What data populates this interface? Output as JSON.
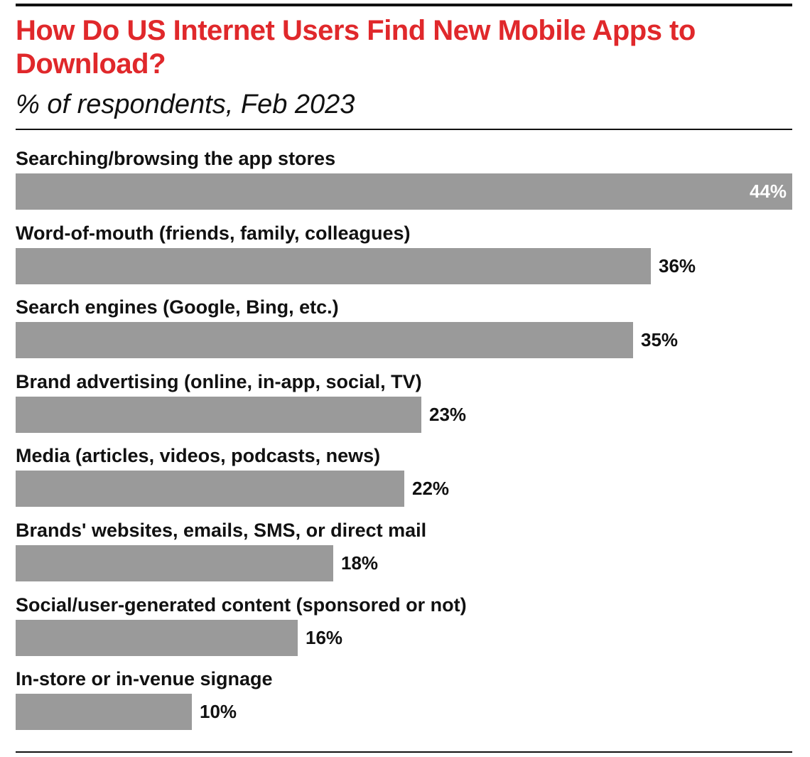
{
  "chart_data": {
    "type": "bar",
    "orientation": "horizontal",
    "title": "How Do US Internet Users Find New Mobile Apps to Download?",
    "subtitle": "% of respondents, Feb 2023",
    "categories": [
      "Searching/browsing the app stores",
      "Word-of-mouth (friends, family, colleagues)",
      "Search engines (Google, Bing, etc.)",
      "Brand advertising (online, in-app, social, TV)",
      "Media (articles, videos, podcasts, news)",
      "Brands' websites, emails, SMS, or direct mail",
      "Social/user-generated content (sponsored or not)",
      "In-store or in-venue signage"
    ],
    "values": [
      44,
      36,
      35,
      23,
      22,
      18,
      16,
      10
    ],
    "value_labels": [
      "44%",
      "36%",
      "35%",
      "23%",
      "22%",
      "18%",
      "16%",
      "10%"
    ],
    "xlim": [
      0,
      44
    ],
    "grid": false,
    "legend": "none",
    "colors": {
      "title": "#e0282b",
      "bar": "#9a9a9a",
      "text": "#111111",
      "label_inside": "#ffffff",
      "rule": "#111111"
    }
  }
}
